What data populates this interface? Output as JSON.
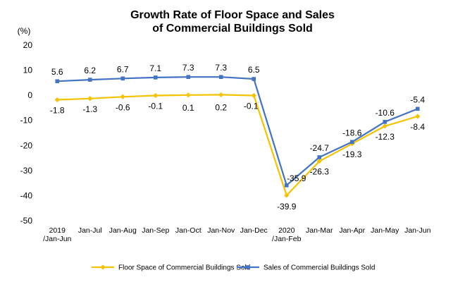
{
  "chart_data": {
    "type": "line",
    "title_line1": "Growth Rate of Floor Space and Sales",
    "title_line2": "of Commercial Buildings Sold",
    "ylabel": "(%)",
    "ylim": [
      -50,
      20
    ],
    "yticks": [
      20,
      10,
      0,
      -10,
      -20,
      -30,
      -40,
      -50
    ],
    "grid": false,
    "legend_position": "bottom",
    "categories": [
      [
        "2019",
        "/Jan-Jun"
      ],
      [
        "Jan-Jul"
      ],
      [
        "Jan-Aug"
      ],
      [
        "Jan-Sep"
      ],
      [
        "Jan-Oct"
      ],
      [
        "Jan-Nov"
      ],
      [
        "Jan-Dec"
      ],
      [
        "2020",
        "/Jan-Feb"
      ],
      [
        "Jan-Mar"
      ],
      [
        "Jan-Apr"
      ],
      [
        "Jan-May"
      ],
      [
        "Jan-Jun"
      ]
    ],
    "series": [
      {
        "name": "Floor Space of Commercial Buildings Sold",
        "color": "#F5C200",
        "marker": "diamond",
        "values": [
          -1.8,
          -1.3,
          -0.6,
          -0.1,
          0.1,
          0.2,
          -0.1,
          -39.9,
          -26.3,
          -19.3,
          -12.3,
          -8.4
        ],
        "labels": [
          "-1.8",
          "-1.3",
          "-0.6",
          "-0.1",
          "0.1",
          "0.2",
          "-0.1",
          "-39.9",
          "-26.3",
          "-19.3",
          "-12.3",
          "-8.4"
        ]
      },
      {
        "name": "Sales of Commercial Buildings Sold",
        "color": "#4472C4",
        "marker": "square",
        "values": [
          5.6,
          6.2,
          6.7,
          7.1,
          7.3,
          7.3,
          6.5,
          -35.9,
          -24.7,
          -18.6,
          -10.6,
          -5.4
        ],
        "labels": [
          "5.6",
          "6.2",
          "6.7",
          "7.1",
          "7.3",
          "7.3",
          "6.5",
          "-35.9",
          "-24.7",
          "-18.6",
          "-10.6",
          "-5.4"
        ]
      }
    ]
  }
}
